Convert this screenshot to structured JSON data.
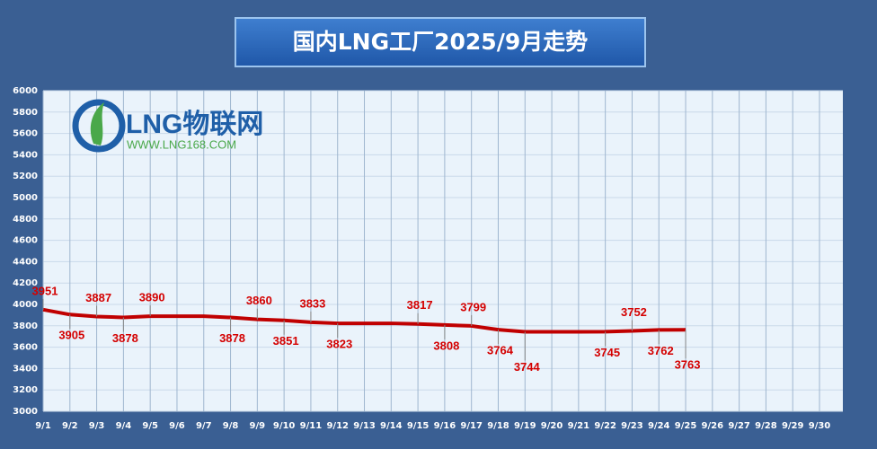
{
  "chart_data": {
    "type": "line",
    "title": "国内LNG工厂2025/9月走势",
    "logo": {
      "name": "LNG物联网",
      "url": "WWW.LNG168.COM"
    },
    "categories": [
      "9/1",
      "9/2",
      "9/3",
      "9/4",
      "9/5",
      "9/6",
      "9/7",
      "9/8",
      "9/9",
      "9/10",
      "9/11",
      "9/12",
      "9/13",
      "9/14",
      "9/15",
      "9/16",
      "9/17",
      "9/18",
      "9/19",
      "9/20",
      "9/21",
      "9/22",
      "9/23",
      "9/24",
      "9/25",
      "9/26",
      "9/27",
      "9/28",
      "9/29",
      "9/30"
    ],
    "values": [
      3951,
      3905,
      3887,
      3878,
      3890,
      3890,
      3890,
      3878,
      3860,
      3851,
      3833,
      3823,
      3823,
      3823,
      3817,
      3808,
      3799,
      3764,
      3744,
      3744,
      3744,
      3745,
      3752,
      3762,
      3763,
      null,
      null,
      null,
      null,
      null
    ],
    "value_labels": [
      "3951",
      "3905",
      "3887",
      "3878",
      "3890",
      null,
      null,
      "3878",
      "3860",
      "3851",
      "3833",
      "3823",
      null,
      null,
      "3817",
      "3808",
      "3799",
      "3764",
      "3744",
      null,
      null,
      "3745",
      "3752",
      "3762",
      "3763",
      null,
      null,
      null,
      null,
      null
    ],
    "color": "#c00000",
    "ylim": [
      3000,
      6000
    ],
    "yticks": [
      3000,
      3200,
      3400,
      3600,
      3800,
      4000,
      4200,
      4400,
      4600,
      4800,
      5000,
      5200,
      5400,
      5600,
      5800,
      6000
    ],
    "grid": true
  }
}
